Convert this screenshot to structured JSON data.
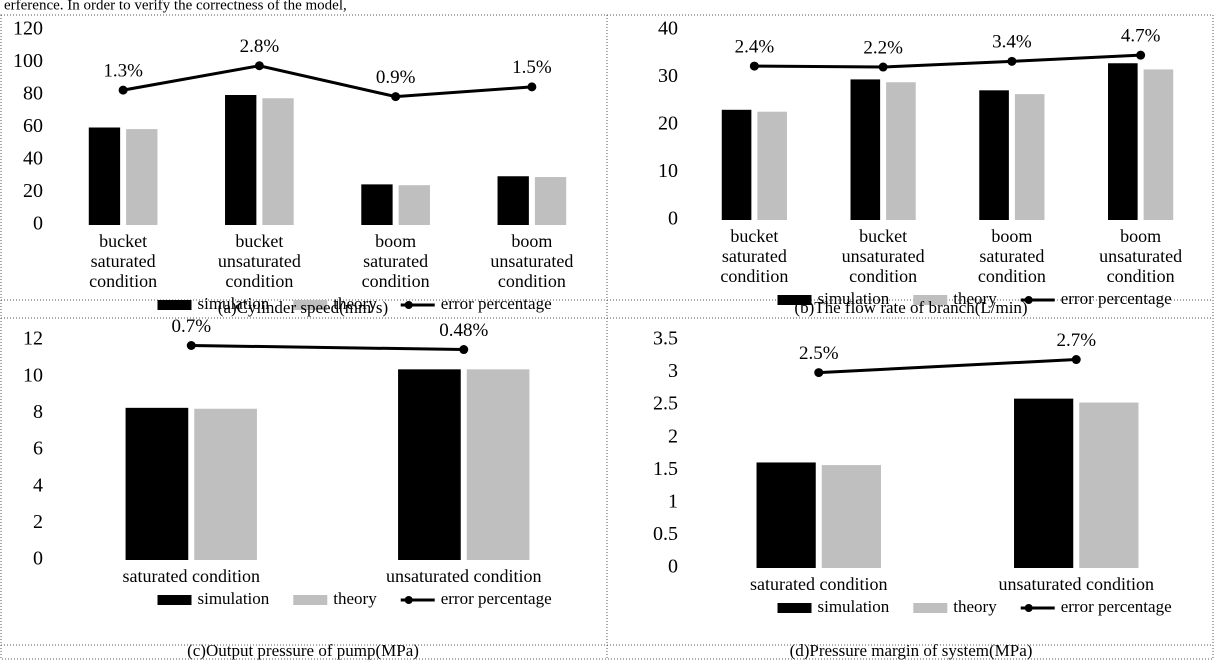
{
  "header_text": "erference. In order to verify the correctness of the model,",
  "chart_data": [
    {
      "type": "bar",
      "caption": "(a)Cylinder speed(mm/s)",
      "categories": [
        [
          "bucket",
          "saturated",
          "condition"
        ],
        [
          "bucket",
          "unsaturated",
          "condition"
        ],
        [
          "boom",
          "saturated",
          "condition"
        ],
        [
          "boom",
          "unsaturated",
          "condition"
        ]
      ],
      "series": [
        {
          "name": "simulation",
          "color": "#000000",
          "values": [
            60,
            80,
            25,
            30
          ]
        },
        {
          "name": "theory",
          "color": "#bfbfbf",
          "values": [
            59,
            78,
            24.5,
            29.5
          ]
        },
        {
          "name": "error percentage",
          "color": "#000000",
          "axis": "y2",
          "values": [
            1.3,
            2.8,
            0.9,
            1.5
          ],
          "value_labels": [
            "1.3%",
            "2.8%",
            "0.9%",
            "1.5%"
          ]
        }
      ],
      "ylim": [
        0,
        120
      ],
      "yticks": [
        0,
        20,
        40,
        60,
        80,
        100,
        120
      ],
      "y2lim": [
        -7,
        5
      ]
    },
    {
      "type": "bar",
      "caption": "(b)The flow rate of branch(L/min)",
      "categories": [
        [
          "bucket",
          "saturated",
          "condition"
        ],
        [
          "bucket",
          "unsaturated",
          "condition"
        ],
        [
          "boom",
          "saturated",
          "condition"
        ],
        [
          "boom",
          "unsaturated",
          "condition"
        ]
      ],
      "series": [
        {
          "name": "simulation",
          "color": "#000000",
          "values": [
            23.2,
            29.6,
            27.3,
            33
          ]
        },
        {
          "name": "theory",
          "color": "#bfbfbf",
          "values": [
            22.8,
            29,
            26.5,
            31.7
          ]
        },
        {
          "name": "error percentage",
          "color": "#000000",
          "axis": "y2",
          "values": [
            2.4,
            2.2,
            3.4,
            4.7
          ],
          "value_labels": [
            "2.4%",
            "2.2%",
            "3.4%",
            "4.7%"
          ]
        }
      ],
      "ylim": [
        0,
        40
      ],
      "yticks": [
        0,
        10,
        20,
        30,
        40
      ],
      "y2lim": [
        -30,
        10
      ]
    },
    {
      "type": "bar",
      "caption": "(c)Output pressure of pump(MPa)",
      "categories": [
        [
          "saturated condition"
        ],
        [
          "unsaturated condition"
        ]
      ],
      "series": [
        {
          "name": "simulation",
          "color": "#000000",
          "values": [
            8.3,
            10.4
          ]
        },
        {
          "name": "theory",
          "color": "#bfbfbf",
          "values": [
            8.25,
            10.4
          ]
        },
        {
          "name": "error percentage",
          "color": "#000000",
          "axis": "y2",
          "values": [
            0.7,
            0.48
          ],
          "value_labels": [
            "0.7%",
            "0.48%"
          ]
        }
      ],
      "ylim": [
        0,
        12
      ],
      "yticks": [
        0,
        2,
        4,
        6,
        8,
        10,
        12
      ],
      "y2lim": [
        -11,
        1
      ]
    },
    {
      "type": "bar",
      "caption": "(d)Pressure margin of system(MPa)",
      "categories": [
        [
          "saturated condition"
        ],
        [
          "unsaturated condition"
        ]
      ],
      "series": [
        {
          "name": "simulation",
          "color": "#000000",
          "values": [
            1.62,
            2.6
          ]
        },
        {
          "name": "theory",
          "color": "#bfbfbf",
          "values": [
            1.58,
            2.54
          ]
        },
        {
          "name": "error percentage",
          "color": "#000000",
          "axis": "y2",
          "values": [
            2.5,
            2.7
          ],
          "value_labels": [
            "2.5%",
            "2.7%"
          ]
        }
      ],
      "ylim": [
        0,
        3.5
      ],
      "yticks": [
        0,
        0.5,
        1,
        1.5,
        2,
        2.5,
        3,
        3.5
      ],
      "y2lim": [
        -0.5,
        3
      ]
    }
  ]
}
